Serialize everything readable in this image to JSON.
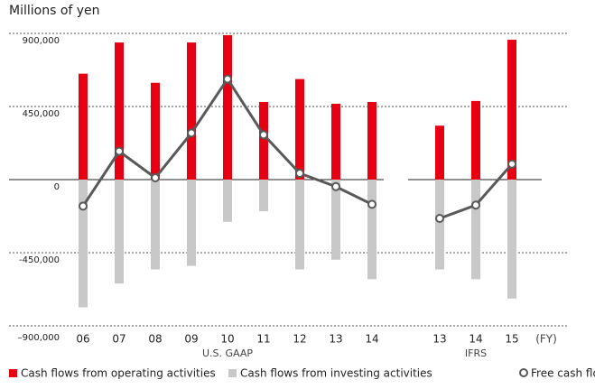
{
  "chart_data": [
    {
      "type": "bar-line",
      "title": "Millions of yen",
      "group_label": "U.S. GAAP",
      "categories": [
        "06",
        "07",
        "08",
        "09",
        "10",
        "11",
        "12",
        "13",
        "14"
      ],
      "series": [
        {
          "name": "Cash flows from operating activities",
          "color": "#e60012",
          "kind": "bar",
          "values": [
            652000,
            844000,
            596000,
            844000,
            889000,
            478000,
            619000,
            467000,
            478000
          ]
        },
        {
          "name": "Cash flows from investing activities",
          "color": "#c8c8c8",
          "kind": "bar",
          "values": [
            -786000,
            -640000,
            -553000,
            -531000,
            -260000,
            -195000,
            -553000,
            -493000,
            -613000
          ]
        },
        {
          "name": "Free cash flows",
          "color": "#595959",
          "kind": "line",
          "values": [
            -163000,
            174000,
            11000,
            287000,
            619000,
            276000,
            39000,
            -43000,
            -152000
          ]
        }
      ],
      "ylim": [
        -900000,
        900000
      ],
      "yticks": [
        {
          "value": 900000,
          "label": "900,000"
        },
        {
          "value": 450000,
          "label": "450,000"
        },
        0,
        {
          "value": -450000,
          "label": "-450,000"
        },
        {
          "value": -900000,
          "label": "–900,000"
        }
      ],
      "grid": true
    },
    {
      "type": "bar-line",
      "group_label": "IFRS",
      "x_unit": "(FY)",
      "categories": [
        "13",
        "14",
        "15"
      ],
      "series": [
        {
          "color": "#e60012",
          "kind": "bar",
          "values": [
            332000,
            484000,
            861000
          ]
        },
        {
          "color": "#c8c8c8",
          "kind": "bar",
          "values": [
            -553000,
            -613000,
            -732000
          ]
        },
        {
          "color": "#595959",
          "kind": "line",
          "values": [
            -239000,
            -157000,
            96000
          ]
        }
      ]
    }
  ]
}
